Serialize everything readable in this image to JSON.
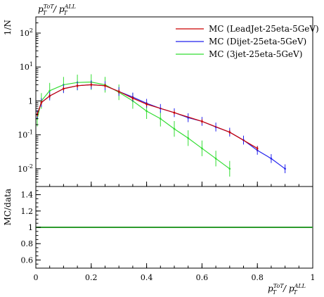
{
  "chart_data": {
    "type": "scatter",
    "title": "",
    "top_left_label": "p_T^{ToT}/p_T^{ALL}",
    "ylabel_main": "1/N",
    "ylabel_ratio": "MC/data",
    "xlabel": "p_T^{ToT}/p_T^{ALL}",
    "xlim": [
      0,
      1
    ],
    "ylim_main": [
      0.003,
      300
    ],
    "yscale_main": "log",
    "ylim_ratio": [
      0.5,
      1.5
    ],
    "x_ticks": [
      "0",
      "0.2",
      "0.4",
      "0.6",
      "0.8",
      "1"
    ],
    "y_ticks_main": [
      "10^{-2}",
      "10^{-1}",
      "1",
      "10^{1}",
      "10^{2}"
    ],
    "y_ticks_ratio": [
      "0.6",
      "0.8",
      "1",
      "1.2",
      "1.4"
    ],
    "legend_position": "top-right",
    "colors": {
      "series_0": "#cc0000",
      "series_1": "#2222ee",
      "series_2": "#33dd33"
    },
    "series": [
      {
        "name": "MC (LeadJet-25eta-5GeV)",
        "x": [
          0.005,
          0.02,
          0.05,
          0.1,
          0.15,
          0.2,
          0.25,
          0.3,
          0.35,
          0.4,
          0.5,
          0.6,
          0.7,
          0.8
        ],
        "y": [
          0.4,
          0.9,
          1.4,
          2.3,
          2.8,
          3.0,
          2.8,
          1.9,
          1.2,
          0.8,
          0.45,
          0.25,
          0.12,
          0.04
        ]
      },
      {
        "name": "MC (Dijet-25eta-5GeV)",
        "x": [
          0.005,
          0.02,
          0.05,
          0.1,
          0.15,
          0.2,
          0.25,
          0.3,
          0.35,
          0.4,
          0.45,
          0.5,
          0.55,
          0.6,
          0.65,
          0.7,
          0.75,
          0.8,
          0.85,
          0.9
        ],
        "y": [
          0.4,
          0.9,
          1.4,
          2.3,
          2.8,
          3.0,
          2.8,
          1.9,
          1.3,
          0.85,
          0.6,
          0.45,
          0.32,
          0.25,
          0.17,
          0.12,
          0.07,
          0.035,
          0.02,
          0.01
        ]
      },
      {
        "name": "MC (3jet-25eta-5GeV)",
        "x": [
          0.005,
          0.02,
          0.05,
          0.1,
          0.15,
          0.2,
          0.25,
          0.3,
          0.35,
          0.4,
          0.45,
          0.5,
          0.55,
          0.6,
          0.65,
          0.7
        ],
        "y": [
          0.3,
          1.0,
          2.0,
          3.0,
          3.5,
          3.6,
          3.0,
          1.8,
          1.0,
          0.5,
          0.3,
          0.15,
          0.08,
          0.04,
          0.02,
          0.01
        ]
      }
    ],
    "ratio_value": 1
  },
  "legend_labels": [
    "MC (LeadJet-25eta-5GeV)",
    "MC (Dijet-25eta-5GeV)",
    "MC (3jet-25eta-5GeV)"
  ]
}
